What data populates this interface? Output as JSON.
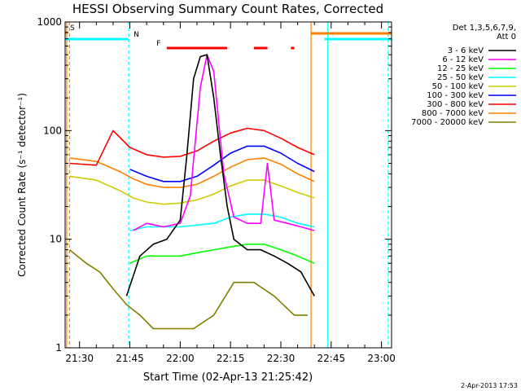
{
  "chart_data": {
    "type": "line",
    "title": "HESSI Observing Summary Count Rates, Corrected",
    "xlabel": "Start Time (02-Apr-13 21:25:42)",
    "ylabel": "Corrected Count Rate (s⁻¹ detector⁻¹)",
    "yscale": "log",
    "ylim": [
      1,
      1000
    ],
    "xlim": [
      "21:25:42",
      "23:03:00"
    ],
    "x_tick_labels": [
      "21:30",
      "21:45",
      "22:00",
      "22:15",
      "22:30",
      "22:45",
      "23:00"
    ],
    "y_tick_labels": [
      "1",
      "10",
      "100",
      "1000"
    ],
    "legend_header": [
      "Det 1,3,5,6,7,9,",
      "Att 0"
    ],
    "legend_position": "right",
    "series": [
      {
        "name": "3 - 6 keV",
        "color": "#000000",
        "times": [
          "21:44",
          "21:48",
          "21:52",
          "21:56",
          "22:00",
          "22:02",
          "22:04",
          "22:06",
          "22:08",
          "22:10",
          "22:12",
          "22:14",
          "22:16",
          "22:20",
          "22:24",
          "22:28",
          "22:32",
          "22:36",
          "22:40"
        ],
        "values": [
          3,
          7,
          9,
          10,
          15,
          60,
          300,
          480,
          500,
          200,
          60,
          20,
          10,
          8,
          8,
          7,
          6,
          5,
          3
        ]
      },
      {
        "name": "6 - 12 keV",
        "color": "#ff00ff",
        "times": [
          "21:46",
          "21:50",
          "21:55",
          "22:00",
          "22:03",
          "22:06",
          "22:08",
          "22:10",
          "22:13",
          "22:16",
          "22:20",
          "22:24",
          "22:26",
          "22:28",
          "22:32",
          "22:36",
          "22:40"
        ],
        "values": [
          12,
          14,
          13,
          14,
          25,
          250,
          500,
          350,
          40,
          16,
          14,
          14,
          50,
          15,
          14,
          13,
          12
        ]
      },
      {
        "name": "12 - 25 keV",
        "color": "#00ff00",
        "times": [
          "21:45",
          "21:50",
          "21:55",
          "22:00",
          "22:05",
          "22:10",
          "22:15",
          "22:20",
          "22:25",
          "22:30",
          "22:35",
          "22:40"
        ],
        "values": [
          6,
          7,
          7,
          7,
          7.5,
          8,
          8.5,
          9,
          9,
          8,
          7,
          6
        ]
      },
      {
        "name": "25 - 50 keV",
        "color": "#00ffff",
        "times": [
          "21:45",
          "21:50",
          "21:55",
          "22:00",
          "22:05",
          "22:10",
          "22:15",
          "22:20",
          "22:25",
          "22:30",
          "22:35",
          "22:40"
        ],
        "values": [
          12,
          13,
          13,
          13,
          13.5,
          14,
          16,
          17,
          17,
          16,
          14,
          13
        ]
      },
      {
        "name": "50 - 100 keV",
        "color": "#cccc00",
        "times": [
          "21:27",
          "21:35",
          "21:42",
          "21:46",
          "21:50",
          "21:55",
          "22:00",
          "22:05",
          "22:10",
          "22:15",
          "22:20",
          "22:25",
          "22:30",
          "22:35",
          "22:40"
        ],
        "values": [
          38,
          35,
          28,
          24,
          22,
          21,
          21.5,
          23,
          26,
          31,
          35,
          35,
          31,
          27,
          24
        ]
      },
      {
        "name": "100 - 300 keV",
        "color": "#0000ff",
        "times": [
          "21:45",
          "21:50",
          "21:55",
          "22:00",
          "22:05",
          "22:10",
          "22:15",
          "22:20",
          "22:25",
          "22:30",
          "22:35",
          "22:40"
        ],
        "values": [
          44,
          38,
          34,
          34,
          38,
          48,
          62,
          72,
          72,
          62,
          50,
          42
        ]
      },
      {
        "name": "300 - 800 keV",
        "color": "#ff0000",
        "times": [
          "21:27",
          "21:35",
          "21:40",
          "21:45",
          "21:50",
          "21:55",
          "22:00",
          "22:05",
          "22:10",
          "22:15",
          "22:20",
          "22:25",
          "22:30",
          "22:35",
          "22:40"
        ],
        "values": [
          50,
          48,
          100,
          70,
          60,
          57,
          58,
          65,
          80,
          95,
          105,
          100,
          85,
          70,
          60
        ]
      },
      {
        "name": "800 - 7000 keV",
        "color": "#ff8000",
        "times": [
          "21:27",
          "21:35",
          "21:42",
          "21:46",
          "21:50",
          "21:55",
          "22:00",
          "22:05",
          "22:10",
          "22:15",
          "22:20",
          "22:25",
          "22:30",
          "22:35",
          "22:40"
        ],
        "values": [
          56,
          52,
          42,
          36,
          32,
          30,
          30,
          32,
          38,
          46,
          54,
          56,
          49,
          40,
          34
        ]
      },
      {
        "name": "7000 - 20000 keV",
        "color": "#808000",
        "times": [
          "21:27",
          "21:32",
          "21:36",
          "21:40",
          "21:44",
          "21:48",
          "21:52",
          "21:58",
          "22:04",
          "22:10",
          "22:16",
          "22:22",
          "22:28",
          "22:34",
          "22:38"
        ],
        "values": [
          8,
          6,
          5,
          3.5,
          2.5,
          2,
          1.5,
          1.5,
          1.5,
          2,
          4,
          4,
          3,
          2,
          2
        ]
      }
    ],
    "flag_bars": [
      {
        "label": "S",
        "color": "#ff8000",
        "segments": [
          [
            "21:25:42",
            "21:26:30"
          ]
        ]
      },
      {
        "label": "N",
        "color": "#00ffff",
        "segments": [
          [
            "21:25:42",
            "21:44:30"
          ],
          [
            "22:43",
            "23:03"
          ]
        ]
      },
      {
        "label": "F",
        "color": "#ff0000",
        "segments": [
          [
            "21:56",
            "22:14"
          ],
          [
            "22:22",
            "22:26"
          ],
          [
            "22:33",
            "22:34"
          ]
        ]
      }
    ],
    "flag_bar_right": {
      "color": "#ff8000",
      "segments": [
        [
          "22:39",
          "23:03"
        ]
      ]
    },
    "vertical_markers": [
      {
        "time": "21:26:10",
        "color": "#ff8000",
        "style": "solid"
      },
      {
        "time": "21:27:00",
        "color": "#ff8000",
        "style": "dashed"
      },
      {
        "time": "21:44:40",
        "color": "#00ffff",
        "style": "dashed"
      },
      {
        "time": "22:39:00",
        "color": "#ff8000",
        "style": "solid"
      },
      {
        "time": "22:44:00",
        "color": "#00ffff",
        "style": "solid"
      },
      {
        "time": "23:02:00",
        "color": "#00ffff",
        "style": "dashed"
      }
    ],
    "footer_timestamp": "2-Apr-2013 17:53"
  }
}
